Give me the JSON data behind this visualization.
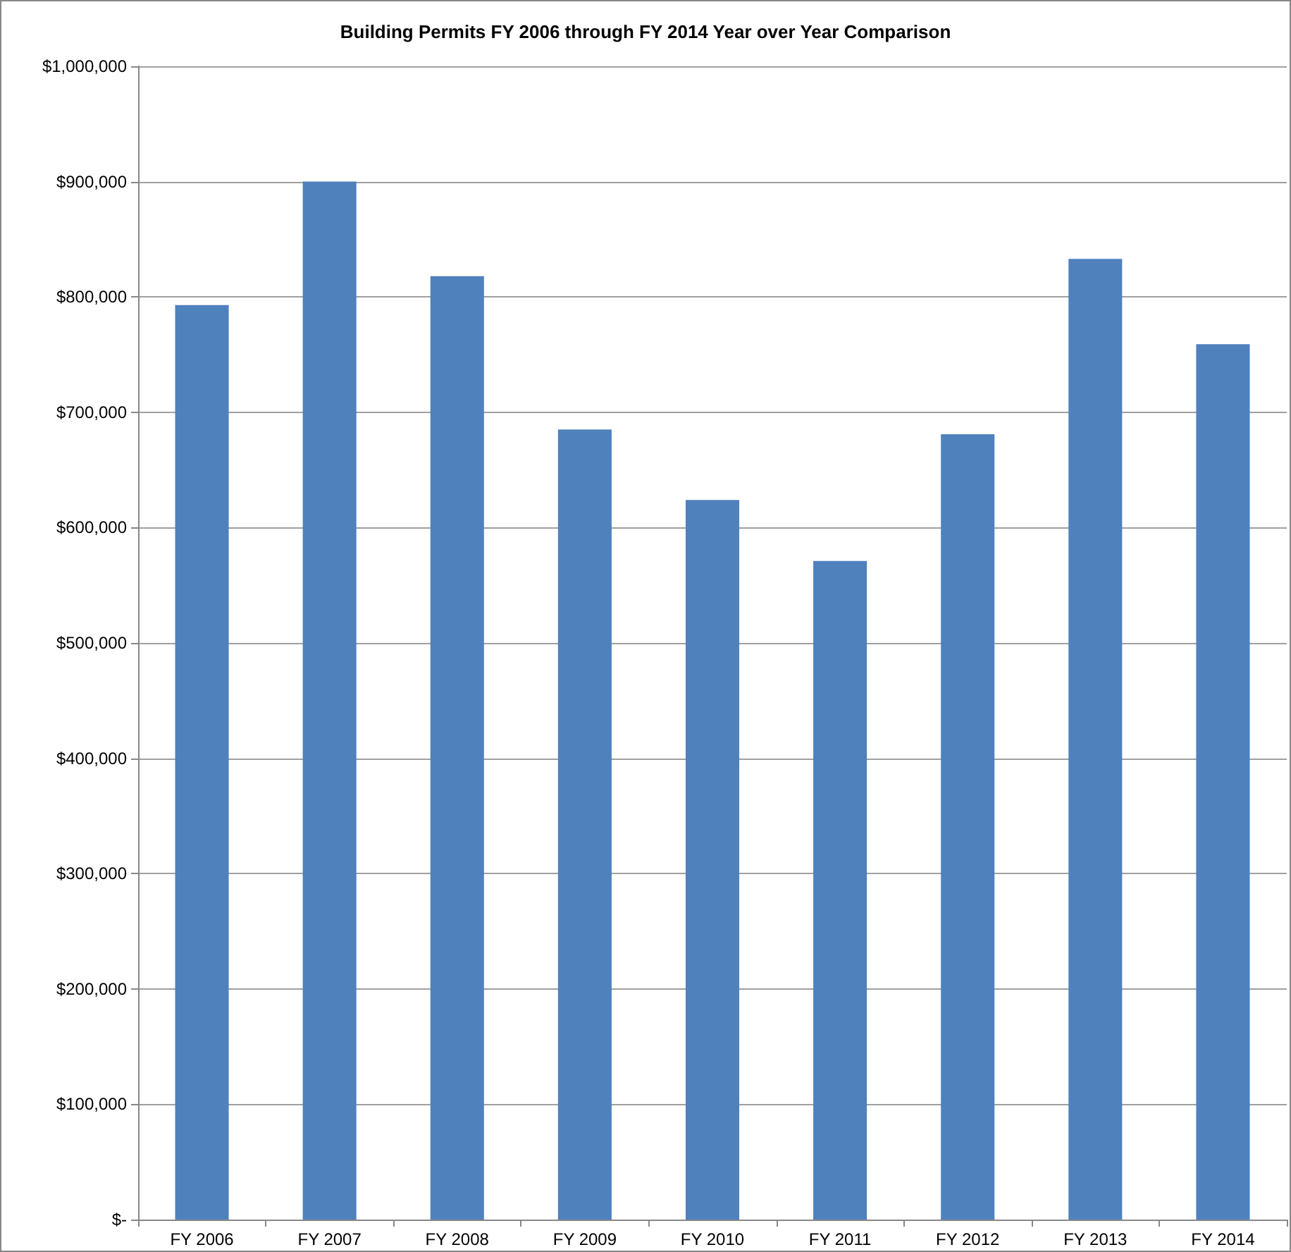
{
  "chart_data": {
    "type": "bar",
    "title": "Building Permits FY 2006 through FY 2014 Year over Year Comparison",
    "categories": [
      "FY 2006",
      "FY 2007",
      "FY 2008",
      "FY 2009",
      "FY 2010",
      "FY 2011",
      "FY 2012",
      "FY 2013",
      "FY 2014"
    ],
    "values": [
      793000,
      900000,
      818000,
      685000,
      624000,
      571000,
      681000,
      833000,
      759000
    ],
    "color": "#4f81bd",
    "ylim": [
      0,
      1000000
    ],
    "yticks": [
      {
        "value": 0,
        "label": "$-"
      },
      {
        "value": 100000,
        "label": "$100,000"
      },
      {
        "value": 200000,
        "label": "$200,000"
      },
      {
        "value": 300000,
        "label": "$300,000"
      },
      {
        "value": 400000,
        "label": "$400,000"
      },
      {
        "value": 500000,
        "label": "$500,000"
      },
      {
        "value": 600000,
        "label": "$600,000"
      },
      {
        "value": 700000,
        "label": "$700,000"
      },
      {
        "value": 800000,
        "label": "$800,000"
      },
      {
        "value": 900000,
        "label": "$900,000"
      },
      {
        "value": 1000000,
        "label": "$1,000,000"
      }
    ],
    "grid": true
  }
}
